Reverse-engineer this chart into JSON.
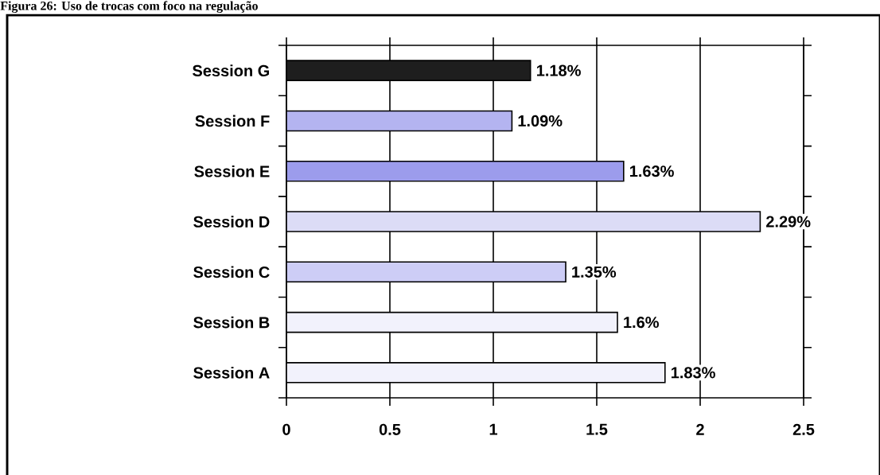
{
  "chart_data": {
    "type": "bar",
    "orientation": "horizontal",
    "title": "Figura 26: Uso de trocas com foco na regulação",
    "categories": [
      "Session G",
      "Session F",
      "Session E",
      "Session D",
      "Session C",
      "Session B",
      "Session A"
    ],
    "values": [
      1.18,
      1.09,
      1.63,
      2.29,
      1.35,
      1.6,
      1.83
    ],
    "value_labels": [
      "1.18%",
      "1.09%",
      "1.63%",
      "2.29%",
      "1.35%",
      "1.6%",
      "1.83%"
    ],
    "colors": [
      "#1e1e1e",
      "#b4b4f0",
      "#9c9cec",
      "#dcdcf6",
      "#cdcdf6",
      "#f2f2fc",
      "#f2f2fc"
    ],
    "xlim": [
      0,
      2.5
    ],
    "xticks": [
      0,
      0.5,
      1,
      1.5,
      2,
      2.5
    ],
    "grid": "x"
  }
}
